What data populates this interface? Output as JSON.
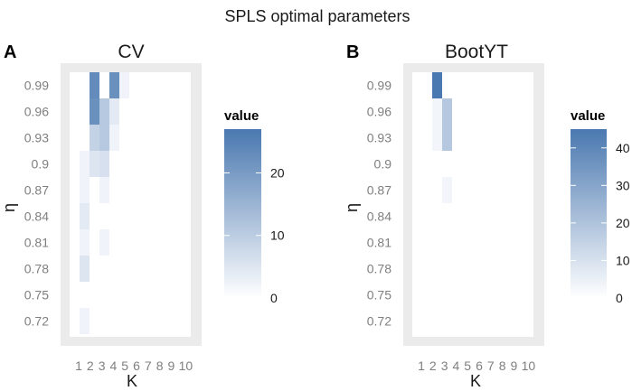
{
  "figure": {
    "title": "SPLS optimal parameters"
  },
  "chart_data": [
    {
      "panel_label": "A",
      "title": "CV",
      "type": "heatmap",
      "xlabel": "K",
      "ylabel": "η",
      "x": [
        "1",
        "2",
        "3",
        "4",
        "5",
        "6",
        "7",
        "8",
        "9",
        "10"
      ],
      "y": [
        "0.72",
        "0.75",
        "0.78",
        "0.81",
        "0.84",
        "0.87",
        "0.9",
        "0.93",
        "0.96",
        "0.99"
      ],
      "z": [
        [
          0,
          1,
          0,
          0,
          0,
          0,
          0,
          0,
          0,
          0
        ],
        [
          0,
          0,
          0,
          0,
          0,
          0,
          0,
          0,
          0,
          0
        ],
        [
          0,
          4,
          0,
          0,
          0,
          0,
          0,
          0,
          0,
          0
        ],
        [
          0,
          1,
          0,
          1,
          0,
          0,
          0,
          0,
          0,
          0
        ],
        [
          0,
          3,
          0,
          0,
          0,
          0,
          0,
          0,
          0,
          0
        ],
        [
          0,
          1,
          0,
          1,
          0,
          0,
          0,
          0,
          0,
          0
        ],
        [
          0,
          1,
          4,
          5,
          0,
          0,
          0,
          0,
          0,
          0
        ],
        [
          0,
          0,
          8,
          10,
          1,
          0,
          0,
          0,
          0,
          0
        ],
        [
          0,
          0,
          22,
          10,
          3,
          0,
          0,
          0,
          0,
          0
        ],
        [
          0,
          0,
          23,
          0,
          22,
          1,
          0,
          0,
          0,
          0
        ]
      ],
      "legend": {
        "title": "value",
        "ticks": [
          0,
          10,
          20
        ],
        "max": 27,
        "position": "right"
      },
      "colors": {
        "low": "#ffffff",
        "high": "#4a78b0",
        "panel": "#ebebeb"
      }
    },
    {
      "panel_label": "B",
      "title": "BootYT",
      "type": "heatmap",
      "xlabel": "K",
      "ylabel": "η",
      "x": [
        "1",
        "2",
        "3",
        "4",
        "5",
        "6",
        "7",
        "8",
        "9",
        "10"
      ],
      "y": [
        "0.72",
        "0.75",
        "0.78",
        "0.81",
        "0.84",
        "0.87",
        "0.9",
        "0.93",
        "0.96",
        "0.99"
      ],
      "z": [
        [
          0,
          0,
          0,
          0,
          0,
          0,
          0,
          0,
          0,
          0
        ],
        [
          0,
          0,
          0,
          0,
          0,
          0,
          0,
          0,
          0,
          0
        ],
        [
          0,
          0,
          0,
          0,
          0,
          0,
          0,
          0,
          0,
          0
        ],
        [
          0,
          0,
          0,
          0,
          0,
          0,
          0,
          0,
          0,
          0
        ],
        [
          0,
          0,
          0,
          0,
          0,
          0,
          0,
          0,
          0,
          0
        ],
        [
          0,
          0,
          0,
          1,
          0,
          0,
          0,
          0,
          0,
          0
        ],
        [
          0,
          0,
          0,
          0,
          0,
          0,
          0,
          0,
          0,
          0
        ],
        [
          0,
          0,
          1,
          17,
          0,
          0,
          0,
          0,
          0,
          0
        ],
        [
          0,
          0,
          1,
          17,
          0,
          0,
          0,
          0,
          0,
          0
        ],
        [
          0,
          0,
          45,
          0,
          0,
          0,
          0,
          0,
          0,
          0
        ]
      ],
      "legend": {
        "title": "value",
        "ticks": [
          0,
          10,
          20,
          30,
          40
        ],
        "max": 45,
        "position": "right"
      },
      "colors": {
        "low": "#ffffff",
        "high": "#4a78b0",
        "panel": "#ebebeb"
      }
    }
  ]
}
